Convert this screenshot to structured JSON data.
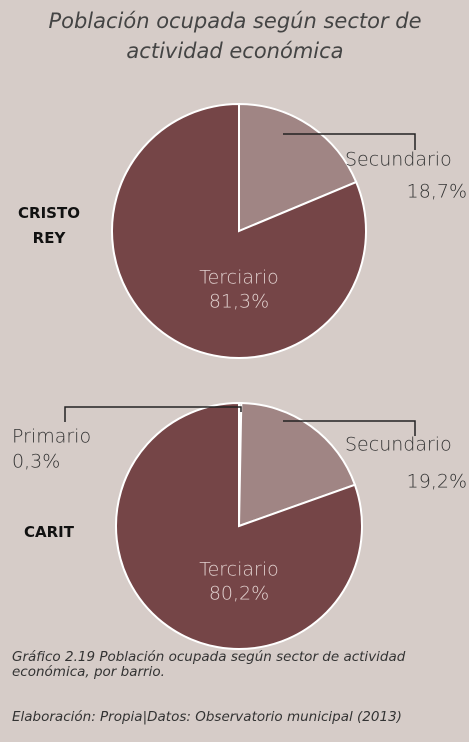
{
  "title": "Población ocupada según sector de actividad económica",
  "caption": "Gráfico 2.19 Población ocupada según sector de actividad económica, por barrio.",
  "source": "Elaboración: Propia|Datos: Observatorio municipal (2013)",
  "chart_data": [
    {
      "type": "pie",
      "label": "CRISTO REY",
      "categories": [
        "Secundario",
        "Terciario"
      ],
      "values": [
        18.7,
        81.3
      ],
      "value_labels": [
        "18,7%",
        "81,3%"
      ],
      "colors": [
        "#a08584",
        "#754547"
      ]
    },
    {
      "type": "pie",
      "label": "CARIT",
      "categories": [
        "Primario",
        "Secundario",
        "Terciario"
      ],
      "values": [
        0.3,
        19.2,
        80.2
      ],
      "value_labels": [
        "0,3%",
        "19,2%",
        "80,2%"
      ],
      "colors": [
        "#a08584",
        "#a08584",
        "#754547"
      ]
    }
  ]
}
